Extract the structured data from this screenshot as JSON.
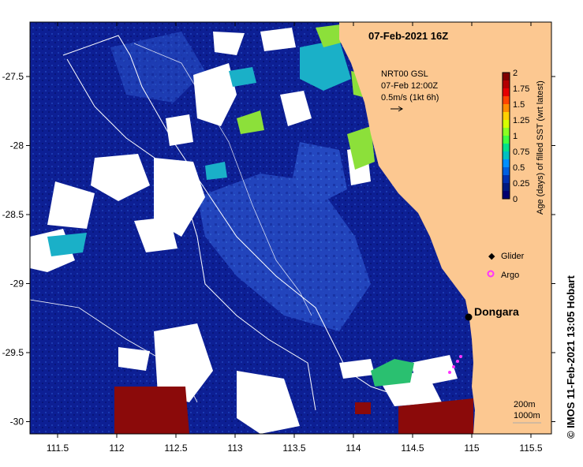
{
  "map": {
    "title": "07-Feb-2021 16Z",
    "x_ticks": [
      "111.5",
      "112",
      "112.5",
      "113",
      "113.5",
      "114",
      "114.5",
      "115",
      "115.5"
    ],
    "y_ticks": [
      "-27.5",
      "-28",
      "-28.5",
      "-29",
      "-29.5",
      "-30"
    ],
    "current_label": {
      "line1": "NRT00 GSL",
      "line2": "07-Feb 12:00Z",
      "line3": "0.5m/s (1kt 6h)"
    },
    "place": "Dongara",
    "legend": {
      "glider": "Glider",
      "argo": "Argo"
    },
    "contours": {
      "c1": "200m",
      "c2": "1000m"
    },
    "credit": "© IMOS 11-Feb-2021 13:05 Hobart"
  },
  "colorbar": {
    "title": "Age (days) of filled SST (wrt latest)",
    "ticks": [
      "2",
      "1.75",
      "1.5",
      "1.25",
      "1",
      "0.75",
      "0.5",
      "0.25",
      "0"
    ],
    "colors": [
      "#800000",
      "#b30000",
      "#e60000",
      "#ff4400",
      "#ff8c00",
      "#ffd000",
      "#d6ff00",
      "#8cff22",
      "#40ff40",
      "#00e08c",
      "#00c0c0",
      "#0090ff",
      "#0060e0",
      "#0030b0",
      "#001a80",
      "#000070"
    ]
  },
  "colors": {
    "land": "#fcc891",
    "ocean_deep": "#0a1a8c",
    "ocean_mid": "#1e40b8",
    "no_data": "#ffffff",
    "old_data": "#8b0a0a",
    "cyan": "#1ab0c8",
    "green": "#80e040"
  }
}
